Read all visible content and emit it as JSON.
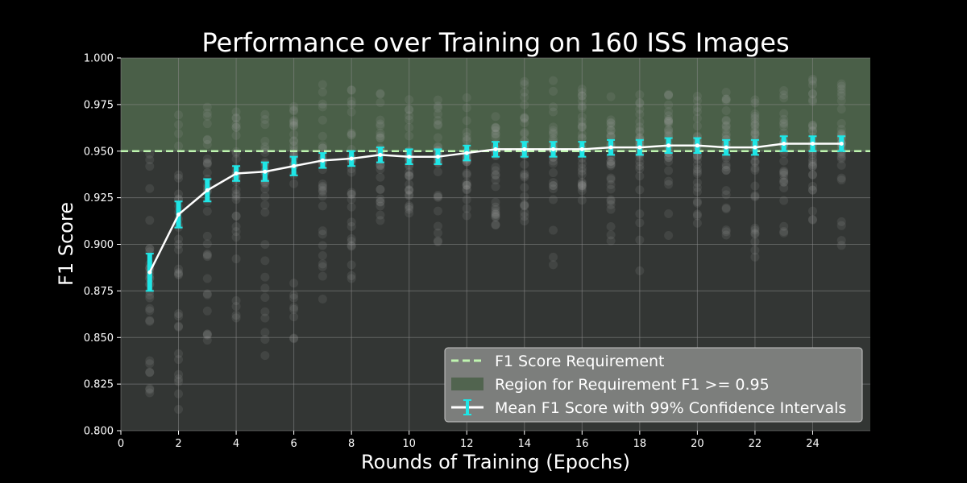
{
  "chart_data": {
    "type": "line",
    "title": "Performance over Training on 160 ISS Images",
    "xlabel": "Rounds of Training (Epochs)",
    "ylabel": "F1 Score",
    "xlim": [
      0,
      26
    ],
    "ylim": [
      0.8,
      1.0
    ],
    "x_ticks": [
      0,
      2,
      4,
      6,
      8,
      10,
      12,
      14,
      16,
      18,
      20,
      22,
      24
    ],
    "y_ticks": [
      0.8,
      0.825,
      0.85,
      0.875,
      0.9,
      0.925,
      0.95,
      0.975,
      1.0
    ],
    "grid": true,
    "legend_position": "bottom-right",
    "requirement": 0.95,
    "colors": {
      "background": "#000000",
      "plot_area": "#333634",
      "region": "#4a5f48",
      "requirement_line": "#bff5b0",
      "mean_line": "#ffffff",
      "error_bars": "#1fe6e6",
      "scatter": "#a8a8a8",
      "grid": "#8a8a8a"
    },
    "series": [
      {
        "name": "Mean F1 Score with 99% Confidence Intervals",
        "x": [
          1,
          2,
          3,
          4,
          5,
          6,
          7,
          8,
          9,
          10,
          11,
          12,
          13,
          14,
          15,
          16,
          17,
          18,
          19,
          20,
          21,
          22,
          23,
          24,
          25
        ],
        "y": [
          0.885,
          0.916,
          0.929,
          0.938,
          0.939,
          0.942,
          0.945,
          0.946,
          0.948,
          0.947,
          0.947,
          0.949,
          0.951,
          0.951,
          0.951,
          0.951,
          0.952,
          0.952,
          0.953,
          0.953,
          0.952,
          0.952,
          0.954,
          0.954,
          0.954
        ],
        "ci": [
          0.01,
          0.007,
          0.006,
          0.004,
          0.005,
          0.005,
          0.004,
          0.004,
          0.004,
          0.004,
          0.004,
          0.004,
          0.004,
          0.004,
          0.004,
          0.004,
          0.004,
          0.004,
          0.004,
          0.004,
          0.004,
          0.004,
          0.004,
          0.004,
          0.004
        ]
      }
    ],
    "scatter_spread": {
      "x": [
        1,
        2,
        3,
        4,
        5,
        6,
        7,
        8,
        9,
        10,
        11,
        12,
        13,
        14,
        15,
        16,
        17,
        18,
        19,
        20,
        21,
        22,
        23,
        24,
        25
      ],
      "min": [
        0.82,
        0.81,
        0.834,
        0.859,
        0.833,
        0.849,
        0.862,
        0.88,
        0.9,
        0.915,
        0.9,
        0.915,
        0.91,
        0.905,
        0.888,
        0.91,
        0.9,
        0.882,
        0.9,
        0.9,
        0.892,
        0.891,
        0.905,
        0.91,
        0.898
      ],
      "max": [
        0.955,
        0.972,
        0.975,
        0.986,
        0.978,
        0.975,
        0.987,
        0.99,
        0.985,
        0.98,
        0.978,
        0.985,
        0.98,
        0.99,
        0.988,
        0.985,
        0.98,
        0.985,
        0.982,
        0.982,
        0.985,
        0.983,
        0.985,
        0.99,
        0.99
      ]
    },
    "legend": [
      {
        "label": "F1 Score Requirement",
        "kind": "dashed-line"
      },
      {
        "label": "Region for Requirement F1 >= 0.95",
        "kind": "patch"
      },
      {
        "label": "Mean F1 Score with 99% Confidence Intervals",
        "kind": "errorbar-line"
      }
    ]
  }
}
